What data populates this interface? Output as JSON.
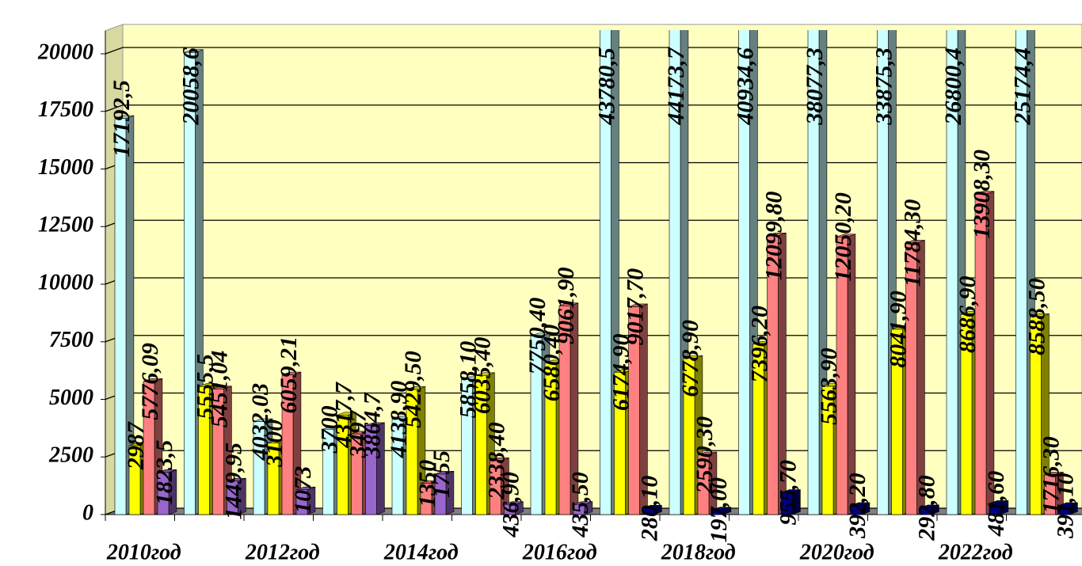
{
  "chart_data": {
    "type": "bar3d",
    "categories": [
      "2010год",
      null,
      "2012год",
      null,
      "2014год",
      null,
      "2016год",
      null,
      "2018год",
      null,
      "2020год",
      null,
      "2022год",
      null
    ],
    "ylim": [
      0,
      21000
    ],
    "yticks": [
      0,
      2500,
      5000,
      7500,
      10000,
      12500,
      15000,
      17500,
      20000
    ],
    "grid": true,
    "series": [
      {
        "color": "#ccffff",
        "values": [
          17192.5,
          20058.6,
          4032.03,
          3700,
          4138.9,
          5858.1,
          7750.4,
          43780.5,
          44173.7,
          40934.6,
          38077.3,
          33875.3,
          26800.4,
          25174.4
        ],
        "value_labels": [
          "17192,5",
          "20058,6",
          "4032,03",
          "3700",
          "4138,90",
          "5858,10",
          "7750,40",
          "43780,5",
          "44173,7",
          "40934,6",
          "38077,3",
          "33875,3",
          "26800,4",
          "25174,4"
        ]
      },
      {
        "color": "#ffff00",
        "values": [
          2987,
          5555.5,
          3100,
          4317.7,
          5429.5,
          6035.4,
          6580.4,
          6174.9,
          6778.9,
          7396.2,
          5563.9,
          8041.9,
          8686.9,
          8588.5
        ],
        "value_labels": [
          "2987",
          "5555,5",
          "3100",
          "4317,7",
          "5429,50",
          "6035,40",
          "6580,40",
          "6174,90",
          "6778,90",
          "7396,20",
          "5563,90",
          "8041,90",
          "8686,90",
          "8588,50"
        ]
      },
      {
        "color": "#ff8080",
        "values": [
          5776.09,
          5451.04,
          6059.21,
          3497,
          1350,
          2338.4,
          9061.9,
          9017.7,
          2590.3,
          12099.8,
          12050.2,
          11784.3,
          13908.3,
          1716.3
        ],
        "value_labels": [
          "5776,09",
          "5451,04",
          "6059,21",
          "3497",
          "1350",
          "2338,40",
          "9061,90",
          "9017,70",
          "2590,30",
          "12099,80",
          "12050,20",
          "11784,30",
          "13908,30",
          "1716,30"
        ]
      },
      {
        "color": "#9966cc",
        "colors": [
          "#9966cc",
          "#9966cc",
          "#9966cc",
          "#9966cc",
          "#9966cc",
          "#9966cc",
          "#9966cc",
          "#000080",
          "#000080",
          "#000080",
          "#000080",
          "#000080",
          "#000080",
          "#000080"
        ],
        "values": [
          1823.5,
          1449.95,
          1073,
          3864.7,
          1755,
          436.9,
          435.5,
          280.1,
          197,
          955.7,
          392.2,
          292.8,
          481.6,
          391.1
        ],
        "value_labels": [
          "1823,5",
          "1449,95",
          "1073",
          "3864,7",
          "1755",
          "436,90",
          "435,50",
          "280,10",
          "197,00",
          "955,70",
          "392,20",
          "292,80",
          "481,60",
          "391,10"
        ]
      }
    ]
  }
}
